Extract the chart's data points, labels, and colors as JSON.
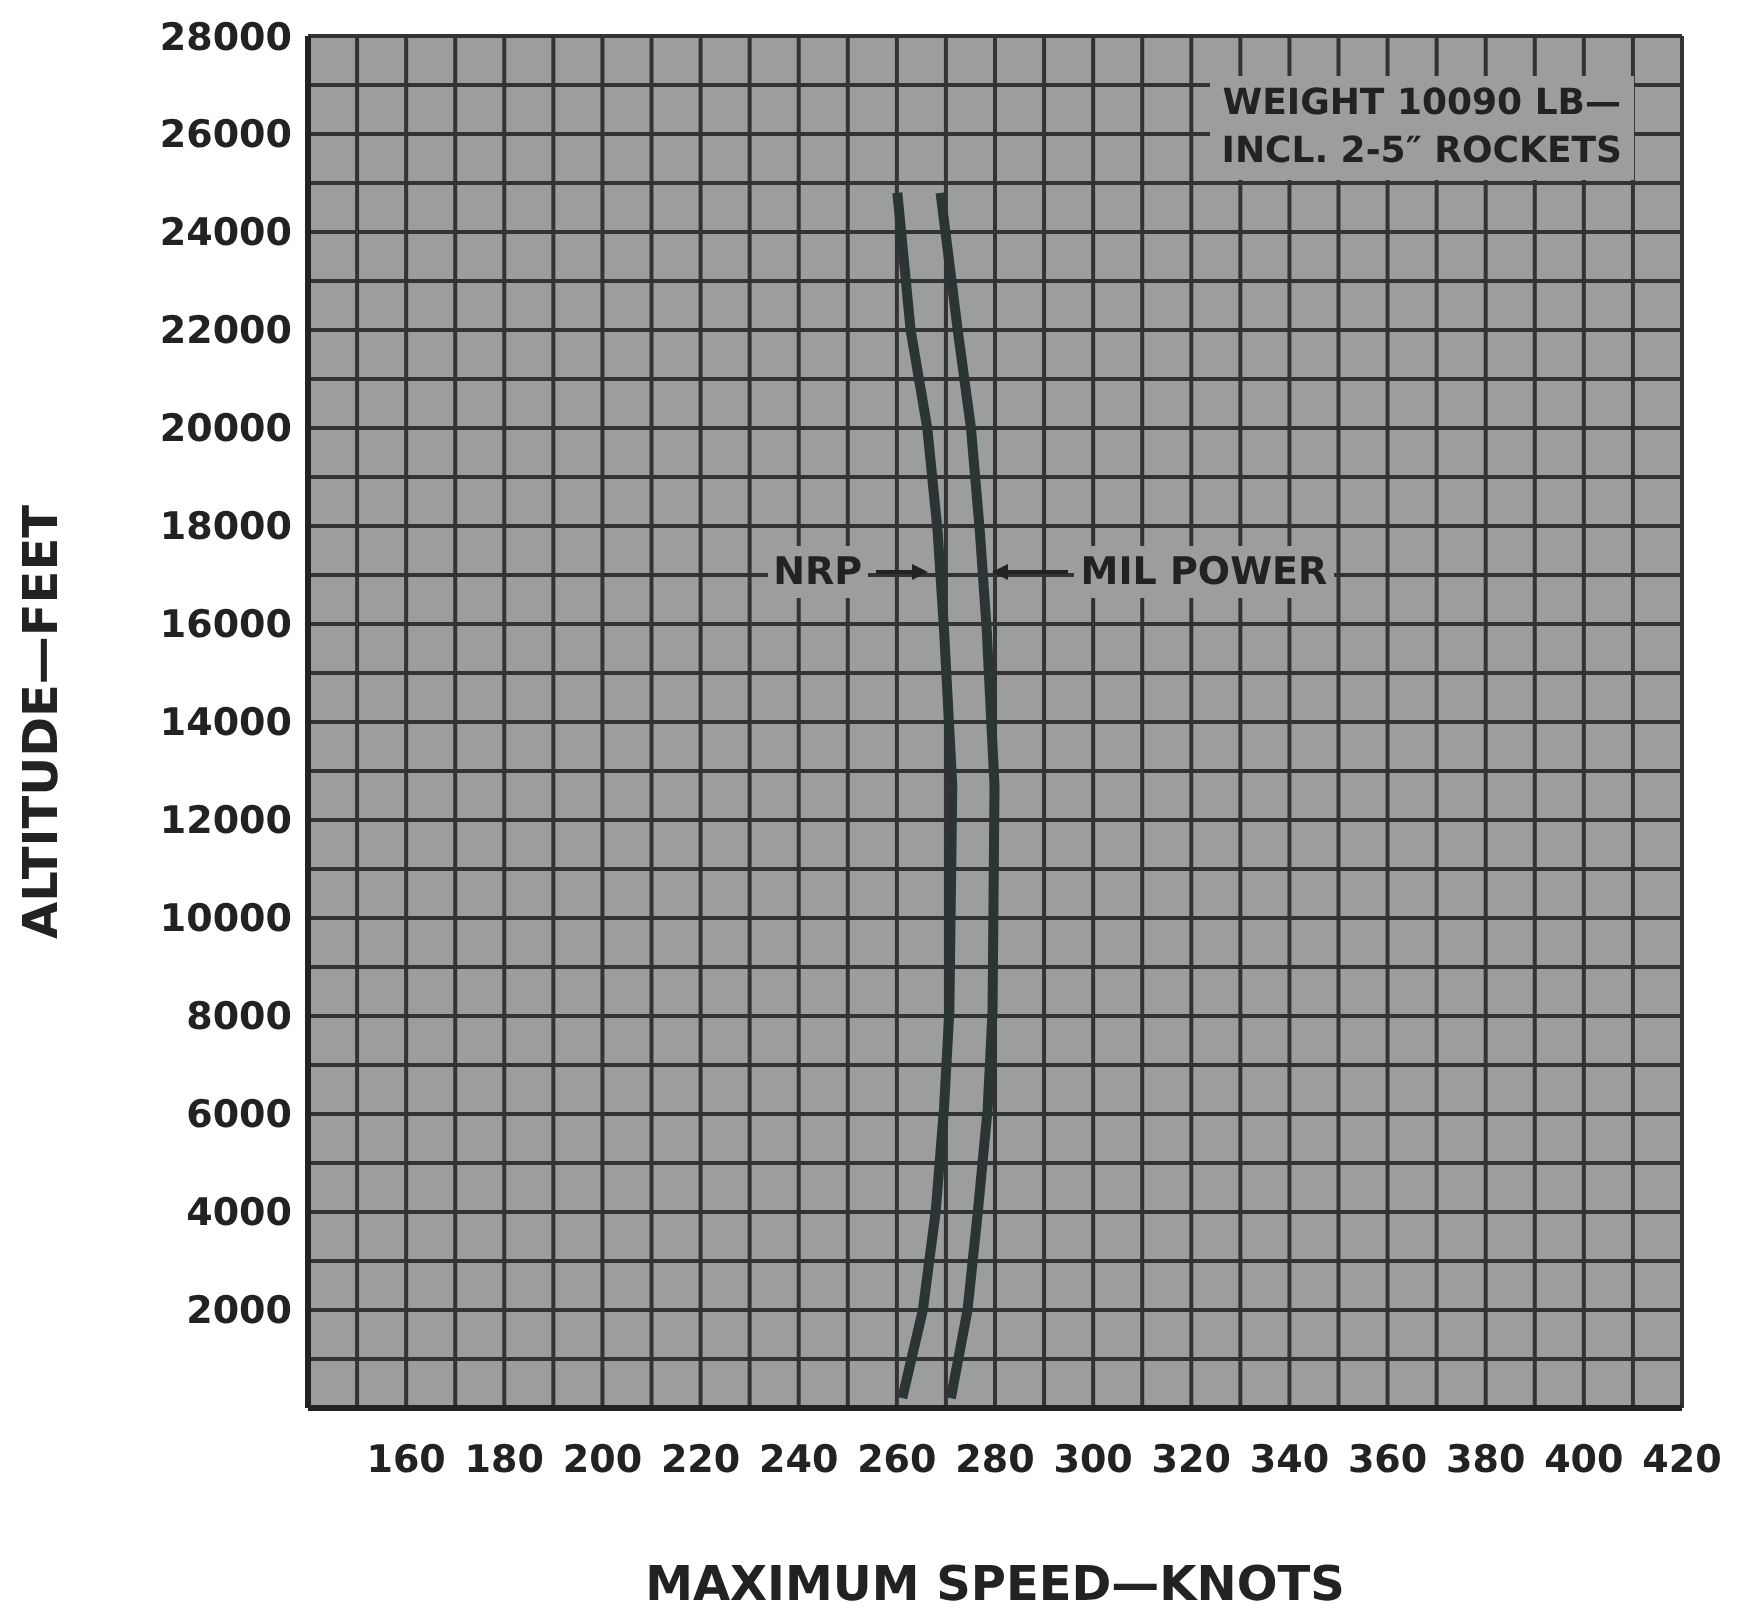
{
  "chart_data": {
    "type": "line",
    "xlabel": "MAXIMUM SPEED—KNOTS",
    "ylabel": "ALTITUDE—FEET",
    "annotations": [
      "WEIGHT 10090 LB—\nINCL. 2-5″ ROCKETS"
    ],
    "xlim": [
      140,
      420
    ],
    "xticks": [
      {
        "value": 150,
        "label": null
      },
      160,
      {
        "value": 170,
        "label": null
      },
      180,
      {
        "value": 190,
        "label": null
      },
      200,
      {
        "value": 210,
        "label": null
      },
      220,
      {
        "value": 230,
        "label": null
      },
      240,
      {
        "value": 250,
        "label": null
      },
      260,
      {
        "value": 270,
        "label": null
      },
      280,
      {
        "value": 290,
        "label": null
      },
      300,
      {
        "value": 310,
        "label": null
      },
      320,
      {
        "value": 330,
        "label": null
      },
      340,
      {
        "value": 350,
        "label": null
      },
      360,
      {
        "value": 370,
        "label": null
      },
      380,
      {
        "value": 390,
        "label": null
      },
      400,
      {
        "value": 410,
        "label": null
      },
      420
    ],
    "ylim": [
      0,
      28000
    ],
    "yticks": [
      {
        "value": 1000,
        "label": null
      },
      2000,
      {
        "value": 3000,
        "label": null
      },
      4000,
      {
        "value": 5000,
        "label": null
      },
      6000,
      {
        "value": 7000,
        "label": null
      },
      8000,
      {
        "value": 9000,
        "label": null
      },
      10000,
      {
        "value": 11000,
        "label": null
      },
      12000,
      {
        "value": 13000,
        "label": null
      },
      14000,
      {
        "value": 15000,
        "label": null
      },
      16000,
      {
        "value": 17000,
        "label": null
      },
      18000,
      {
        "value": 19000,
        "label": null
      },
      20000,
      {
        "value": 21000,
        "label": null
      },
      22000,
      {
        "value": 23000,
        "label": null
      },
      24000,
      {
        "value": 25000,
        "label": null
      },
      26000,
      {
        "value": 27000,
        "label": null
      },
      28000
    ],
    "grid": true,
    "marker": "none",
    "line_style": "solid",
    "series": [
      {
        "name": "NRP",
        "color": "#2b3535",
        "x": [
          260.1,
          262.8,
          266.2,
          268.3,
          269.6,
          271.3,
          270.7,
          269.6,
          267.9,
          265.3,
          261.1
        ],
        "values": [
          24800,
          22000,
          20000,
          17900,
          15900,
          12700,
          8100,
          6100,
          4000,
          2000,
          200
        ]
      },
      {
        "name": "MIL POWER",
        "color": "#2b3535",
        "x": [
          268.9,
          272.4,
          275.1,
          276.9,
          278.3,
          279.9,
          279.5,
          278.5,
          276.5,
          274.4,
          271
        ],
        "values": [
          24800,
          22000,
          20000,
          17900,
          15900,
          12700,
          8100,
          6100,
          4000,
          2000,
          200
        ]
      }
    ]
  }
}
